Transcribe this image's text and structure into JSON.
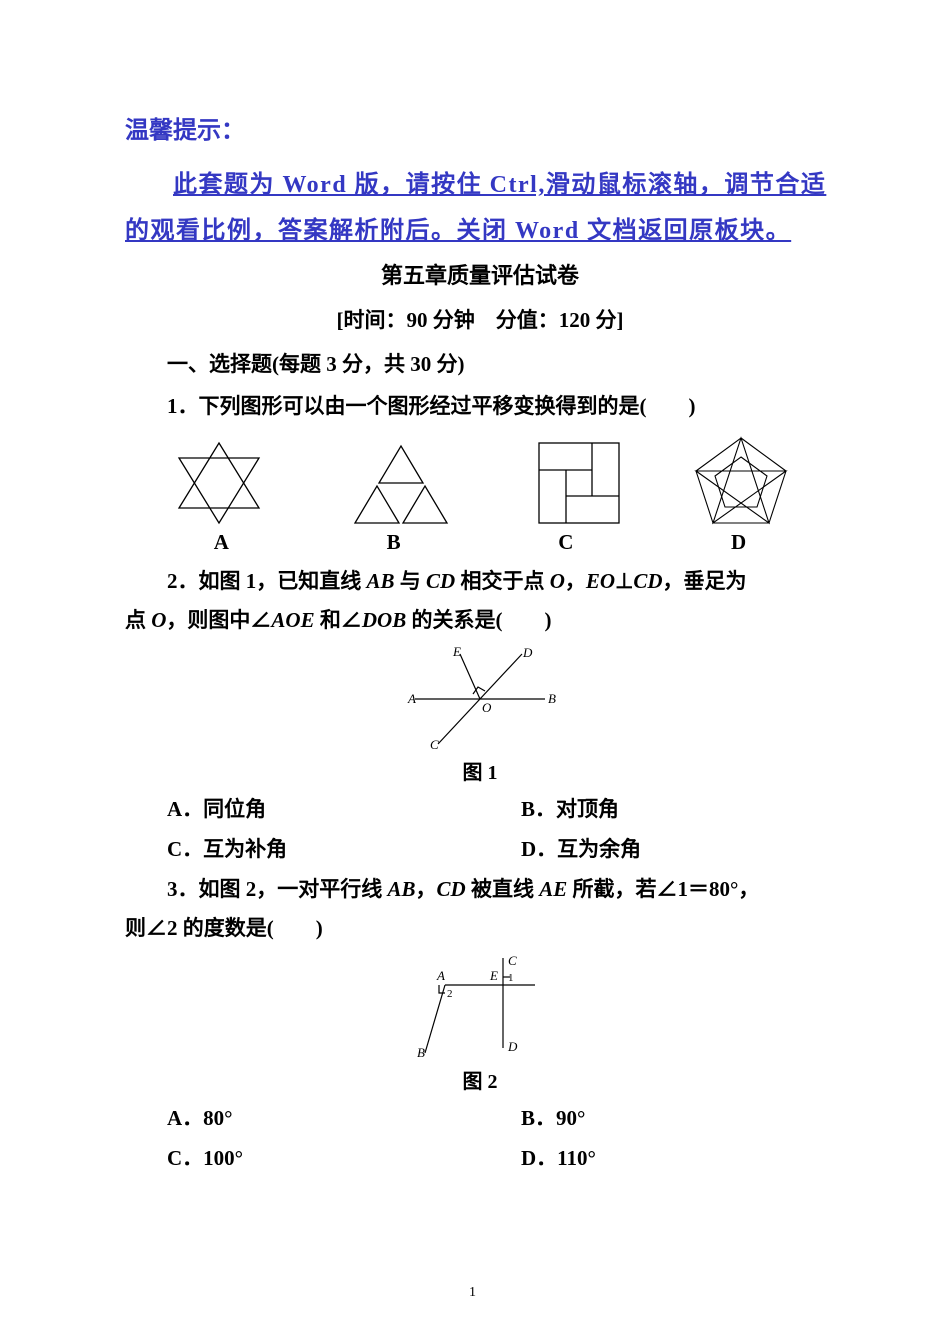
{
  "tip": {
    "header": "温馨提示：",
    "body": "此套题为 Word 版，请按住 Ctrl,滑动鼠标滚轴，调节合适的观看比例，答案解析附后。关闭 Word 文档返回原板块。"
  },
  "chapter_title": "第五章质量评估试卷",
  "time_line": "[时间：90 分钟　分值：120 分]",
  "section1_head": "一、选择题(每题 3 分，共 30 分)",
  "q1": {
    "text_prefix": "1．下列图形可以由一个图形经过平移变换得到的是(　　)",
    "labels": [
      "A",
      "B",
      "C",
      "D"
    ],
    "stroke": "#000000",
    "fill": "none"
  },
  "q2": {
    "line1_html": "2．如图 1，已知直线 <span class=\"it\">AB</span> 与 <span class=\"it\">CD</span> 相交于点 <span class=\"it\">O</span>，<span class=\"it\">EO</span>⊥<span class=\"it\">CD</span>，垂足为",
    "line2_html": "点 <span class=\"it\">O</span>，则图中∠<span class=\"it\">AOE</span> 和∠<span class=\"it\">DOB</span> 的关系是(　　)",
    "caption": "图 1",
    "choices": {
      "A": "A．同位角",
      "B": "B．对顶角",
      "C": "C．互为补角",
      "D": "D．互为余角"
    },
    "diagram": {
      "stroke": "#000000",
      "label_font": 13
    }
  },
  "q3": {
    "line1_html": "3．如图 2，一对平行线 <span class=\"it\">AB</span>，<span class=\"it\">CD</span> 被直线 <span class=\"it\">AE</span> 所截，若∠1＝80°，",
    "line2_html": "则∠2 的度数是(　　)",
    "caption": "图 2",
    "choices": {
      "A": "A．80°",
      "B": "B．90°",
      "C": "C．100°",
      "D": "D．110°"
    },
    "diagram": {
      "stroke": "#000000",
      "label_font": 13
    }
  },
  "page_number": "1"
}
